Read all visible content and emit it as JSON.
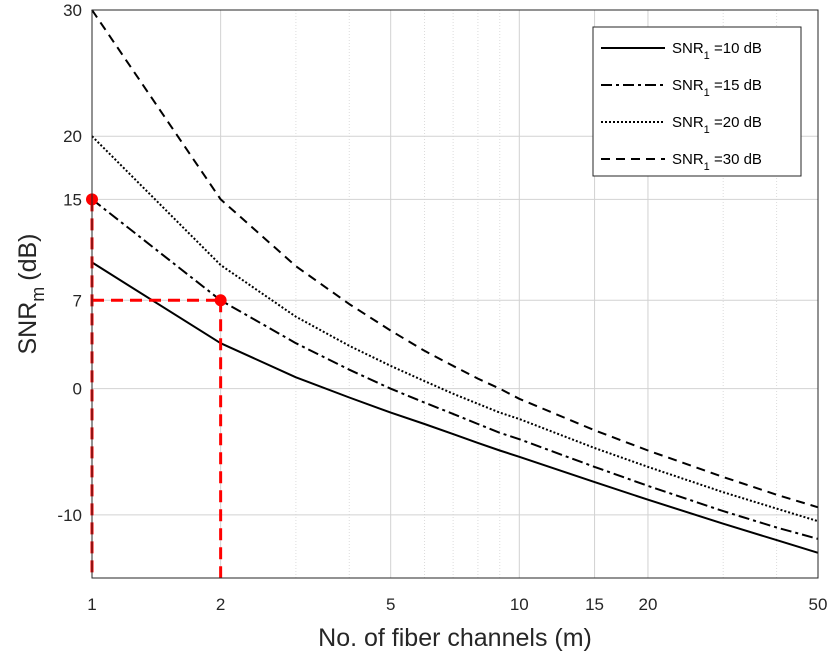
{
  "chart_data": {
    "type": "line",
    "xscale": "log",
    "xlabel": "No. of fiber channels (m)",
    "ylabel": {
      "base": "SNR",
      "sub": "m",
      "unit": "(dB)"
    },
    "xlim": [
      1,
      50
    ],
    "ylim": [
      -15,
      30
    ],
    "xticks": [
      1,
      2,
      5,
      10,
      15,
      20,
      50
    ],
    "xtick_labels": [
      "1",
      "2",
      "5",
      "10",
      "15",
      "20",
      "50"
    ],
    "yticks": [
      -10,
      0,
      7,
      15,
      20,
      30
    ],
    "ytick_labels": [
      "-10",
      "0",
      "7",
      "15",
      "20",
      "30"
    ],
    "grid": true,
    "x": [
      1,
      2,
      3,
      4,
      5,
      6,
      7,
      8,
      9,
      10,
      15,
      20,
      30,
      40,
      50
    ],
    "series": [
      {
        "name": "SNR1 =10 dB",
        "label_base": "SNR",
        "label_sub": "1",
        "label_rest": " =10 dB",
        "style": "solid",
        "values": [
          10,
          3.6,
          0.9,
          -0.7,
          -1.9,
          -2.8,
          -3.6,
          -4.3,
          -4.9,
          -5.4,
          -7.4,
          -8.8,
          -10.7,
          -12.0,
          -13.0
        ]
      },
      {
        "name": "SNR1 =15 dB",
        "label_base": "SNR",
        "label_sub": "1",
        "label_rest": " =15 dB",
        "style": "dashdot",
        "values": [
          15,
          7.0,
          3.6,
          1.5,
          0.0,
          -1.1,
          -2.0,
          -2.8,
          -3.5,
          -4.0,
          -6.2,
          -7.7,
          -9.7,
          -11.0,
          -11.9
        ]
      },
      {
        "name": "SNR1 =20 dB",
        "label_base": "SNR",
        "label_sub": "1",
        "label_rest": " =20 dB",
        "style": "dotted",
        "values": [
          20,
          9.8,
          5.7,
          3.4,
          1.8,
          0.6,
          -0.4,
          -1.2,
          -1.9,
          -2.4,
          -4.7,
          -6.2,
          -8.2,
          -9.5,
          -10.5
        ]
      },
      {
        "name": "SNR1 =30 dB",
        "label_base": "SNR",
        "label_sub": "1",
        "label_rest": " =30 dB",
        "style": "dashed",
        "values": [
          30,
          15,
          9.7,
          6.7,
          4.6,
          3.0,
          1.8,
          0.8,
          0.0,
          -0.8,
          -3.3,
          -4.9,
          -7.0,
          -8.4,
          -9.4
        ]
      }
    ],
    "annotations": {
      "color": "#ff0000",
      "points": [
        {
          "x": 1,
          "y": 15
        },
        {
          "x": 2,
          "y": 7
        }
      ],
      "guides": [
        {
          "from": [
            1,
            15
          ],
          "to": [
            1,
            -15
          ]
        },
        {
          "from": [
            1,
            7
          ],
          "to": [
            2,
            7
          ]
        },
        {
          "from": [
            2,
            7
          ],
          "to": [
            2,
            -15
          ]
        }
      ]
    },
    "legend_position": "top-right"
  }
}
